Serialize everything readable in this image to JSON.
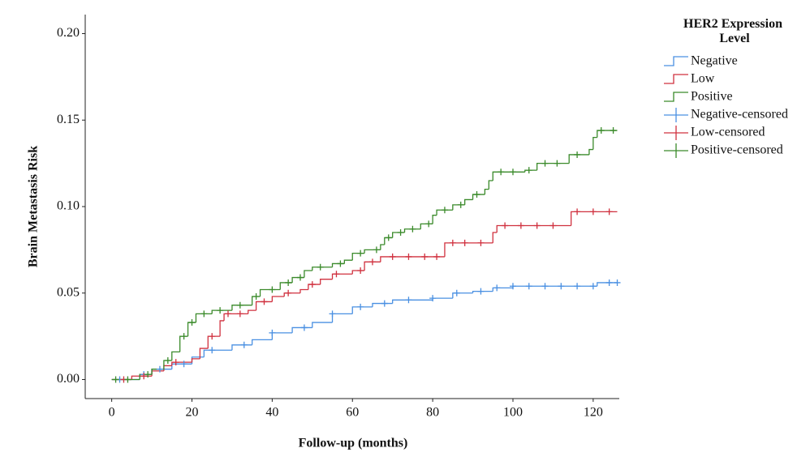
{
  "chart_data": {
    "type": "step",
    "y_label": "Brain Metastasis Risk",
    "x_label": "Follow-up (months)",
    "legend_title": "HER2 Expression Level",
    "legend": "right",
    "xlim": [
      -6.6,
      126.5
    ],
    "ylim": [
      -0.011,
      0.211
    ],
    "xticks": [
      0,
      20,
      40,
      60,
      80,
      100,
      120
    ],
    "yticks": [
      {
        "value": 0,
        "label": "0.00"
      },
      {
        "value": 0.05,
        "label": "0.05"
      },
      {
        "value": 0.1,
        "label": "0.10"
      },
      {
        "value": 0.15,
        "label": "0.15"
      },
      {
        "value": 0.2,
        "label": "0.20"
      }
    ],
    "series": [
      {
        "name": "Negative",
        "color": "#4a90e2",
        "style": "step",
        "x": [
          0,
          7,
          10,
          15,
          20,
          23,
          30,
          35,
          40,
          45,
          50,
          55,
          60,
          65,
          70,
          80,
          85,
          90,
          95,
          100,
          121,
          126
        ],
        "values": [
          0,
          0.003,
          0.006,
          0.009,
          0.013,
          0.017,
          0.02,
          0.023,
          0.027,
          0.03,
          0.033,
          0.038,
          0.042,
          0.044,
          0.046,
          0.047,
          0.05,
          0.051,
          0.053,
          0.054,
          0.056,
          0.056
        ]
      },
      {
        "name": "Low",
        "color": "#d0313f",
        "style": "step",
        "x": [
          0,
          5,
          10,
          13,
          15,
          20,
          22,
          24,
          27,
          28,
          34,
          36,
          40,
          43,
          47,
          49,
          52,
          55,
          60,
          63,
          67,
          83,
          95,
          96,
          114.5,
          126
        ],
        "values": [
          0,
          0.002,
          0.005,
          0.008,
          0.01,
          0.012,
          0.018,
          0.025,
          0.034,
          0.038,
          0.04,
          0.045,
          0.048,
          0.05,
          0.052,
          0.055,
          0.058,
          0.061,
          0.063,
          0.068,
          0.071,
          0.079,
          0.085,
          0.089,
          0.097,
          0.097
        ]
      },
      {
        "name": "Positive",
        "color": "#3a8a2a",
        "style": "step",
        "x": [
          0,
          7,
          10,
          13,
          15,
          17,
          19,
          21,
          25,
          30,
          35,
          37,
          42,
          45,
          48,
          50,
          55,
          58,
          60,
          63,
          67,
          68,
          70,
          73,
          77,
          80,
          81,
          85,
          88,
          90,
          93,
          94,
          95,
          103,
          106,
          114,
          119,
          120,
          121,
          126
        ],
        "values": [
          0,
          0.003,
          0.006,
          0.011,
          0.016,
          0.025,
          0.033,
          0.038,
          0.04,
          0.043,
          0.048,
          0.052,
          0.056,
          0.059,
          0.063,
          0.065,
          0.067,
          0.069,
          0.073,
          0.075,
          0.078,
          0.082,
          0.085,
          0.087,
          0.09,
          0.095,
          0.098,
          0.101,
          0.104,
          0.107,
          0.11,
          0.115,
          0.12,
          0.121,
          0.125,
          0.13,
          0.133,
          0.14,
          0.144,
          0.144
        ]
      },
      {
        "name": "Negative-censored",
        "color": "#4a90e2",
        "style": "censored",
        "x": [
          2,
          8,
          12,
          18,
          25,
          33,
          40,
          48,
          55,
          62,
          68,
          74,
          80,
          86,
          92,
          96,
          100,
          104,
          108,
          112,
          116,
          120,
          124,
          126
        ],
        "values": [
          0,
          0.003,
          0.006,
          0.009,
          0.017,
          0.02,
          0.027,
          0.03,
          0.038,
          0.042,
          0.044,
          0.046,
          0.047,
          0.05,
          0.051,
          0.053,
          0.054,
          0.054,
          0.054,
          0.054,
          0.054,
          0.054,
          0.056,
          0.056
        ]
      },
      {
        "name": "Low-censored",
        "color": "#d0313f",
        "style": "censored",
        "x": [
          3,
          8,
          16,
          25,
          29,
          32,
          38,
          44,
          50,
          56,
          62,
          65,
          70,
          74,
          78,
          81,
          85,
          88,
          92,
          98,
          102,
          106,
          110,
          116,
          120,
          124
        ],
        "values": [
          0,
          0.002,
          0.01,
          0.025,
          0.038,
          0.038,
          0.045,
          0.05,
          0.055,
          0.061,
          0.063,
          0.068,
          0.071,
          0.071,
          0.071,
          0.071,
          0.079,
          0.079,
          0.079,
          0.089,
          0.089,
          0.089,
          0.089,
          0.097,
          0.097,
          0.097
        ]
      },
      {
        "name": "Positive-censored",
        "color": "#3a8a2a",
        "style": "censored",
        "x": [
          1,
          4,
          9,
          14,
          18,
          20,
          23,
          27,
          32,
          36,
          40,
          44,
          47,
          52,
          57,
          62,
          66,
          69,
          72,
          75,
          79,
          83,
          87,
          91,
          97,
          100,
          104,
          108,
          111,
          116,
          122,
          125
        ],
        "values": [
          0,
          0,
          0.003,
          0.011,
          0.025,
          0.033,
          0.038,
          0.04,
          0.043,
          0.048,
          0.052,
          0.056,
          0.059,
          0.065,
          0.067,
          0.073,
          0.075,
          0.082,
          0.085,
          0.087,
          0.09,
          0.098,
          0.101,
          0.107,
          0.12,
          0.12,
          0.121,
          0.125,
          0.125,
          0.13,
          0.144,
          0.144
        ]
      }
    ]
  }
}
